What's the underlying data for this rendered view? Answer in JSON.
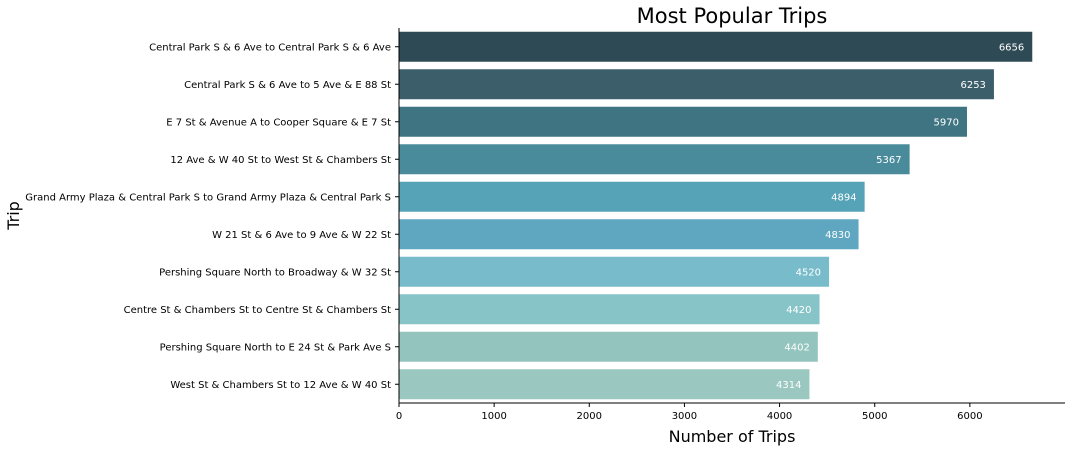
{
  "chart_data": {
    "type": "bar",
    "orientation": "horizontal",
    "title": "Most Popular Trips",
    "xlabel": "Number of Trips",
    "ylabel": "Trip",
    "xlim": [
      0,
      7000
    ],
    "xticks": [
      0,
      1000,
      2000,
      3000,
      4000,
      5000,
      6000
    ],
    "grid": false,
    "categories": [
      "Central Park S & 6 Ave to Central Park S & 6 Ave",
      "Central Park S & 6 Ave to 5 Ave & E 88 St",
      "E 7 St & Avenue A to Cooper Square & E 7 St",
      "12 Ave & W 40 St to West St & Chambers St",
      "Grand Army Plaza & Central Park S to Grand Army Plaza & Central Park S",
      "W 21 St & 6 Ave to 9 Ave & W 22 St",
      "Pershing Square North to Broadway & W 32 St",
      "Centre St & Chambers St to Centre St & Chambers St",
      "Pershing Square North to E 24 St & Park Ave S",
      "West St & Chambers St to 12 Ave & W 40 St"
    ],
    "values": [
      6656,
      6253,
      5970,
      5367,
      4894,
      4830,
      4520,
      4420,
      4402,
      4314
    ],
    "colors": [
      "#2e4a55",
      "#3b5e6a",
      "#3f7482",
      "#4a8b9b",
      "#56a3b8",
      "#5fa6c0",
      "#78bccb",
      "#86c4c8",
      "#93c4bd",
      "#9ac7bf"
    ]
  }
}
